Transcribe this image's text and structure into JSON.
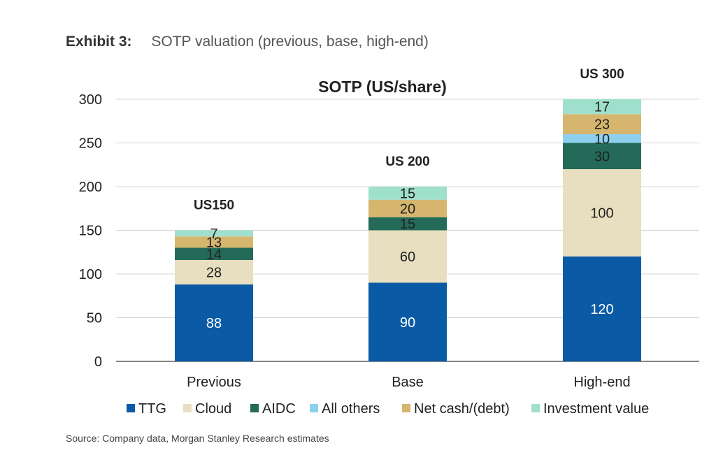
{
  "exhibit": {
    "label": "Exhibit 3:",
    "title": "SOTP valuation (previous, base, high-end)"
  },
  "source": "Source: Company data, Morgan Stanley Research estimates",
  "chart_data": {
    "type": "bar",
    "stacked": true,
    "title": "SOTP (US/share)",
    "categories": [
      "Previous",
      "Base",
      "High-end"
    ],
    "totals": [
      "US150",
      "US 200",
      "US 300"
    ],
    "series": [
      {
        "name": "TTG",
        "color": "#0b5aa6",
        "label_color": "#ffffff",
        "values": [
          88,
          90,
          120
        ]
      },
      {
        "name": "Cloud",
        "color": "#e8dfc0",
        "label_color": "#222222",
        "values": [
          28,
          60,
          100
        ]
      },
      {
        "name": "AIDC",
        "color": "#236a58",
        "label_color": "#222222",
        "values": [
          14,
          15,
          30
        ]
      },
      {
        "name": "All others",
        "color": "#8ed1ee",
        "label_color": "#222222",
        "values": [
          0,
          0,
          10
        ]
      },
      {
        "name": "Net cash/(debt)",
        "color": "#d6b66e",
        "label_color": "#222222",
        "values": [
          13,
          20,
          23
        ]
      },
      {
        "name": "Investment value",
        "color": "#9fe0cc",
        "label_color": "#222222",
        "values": [
          7,
          15,
          17
        ]
      }
    ],
    "ylim": [
      0,
      300
    ],
    "yticks": [
      0,
      50,
      100,
      150,
      200,
      250,
      300
    ],
    "grid": true,
    "legend": "bottom"
  }
}
